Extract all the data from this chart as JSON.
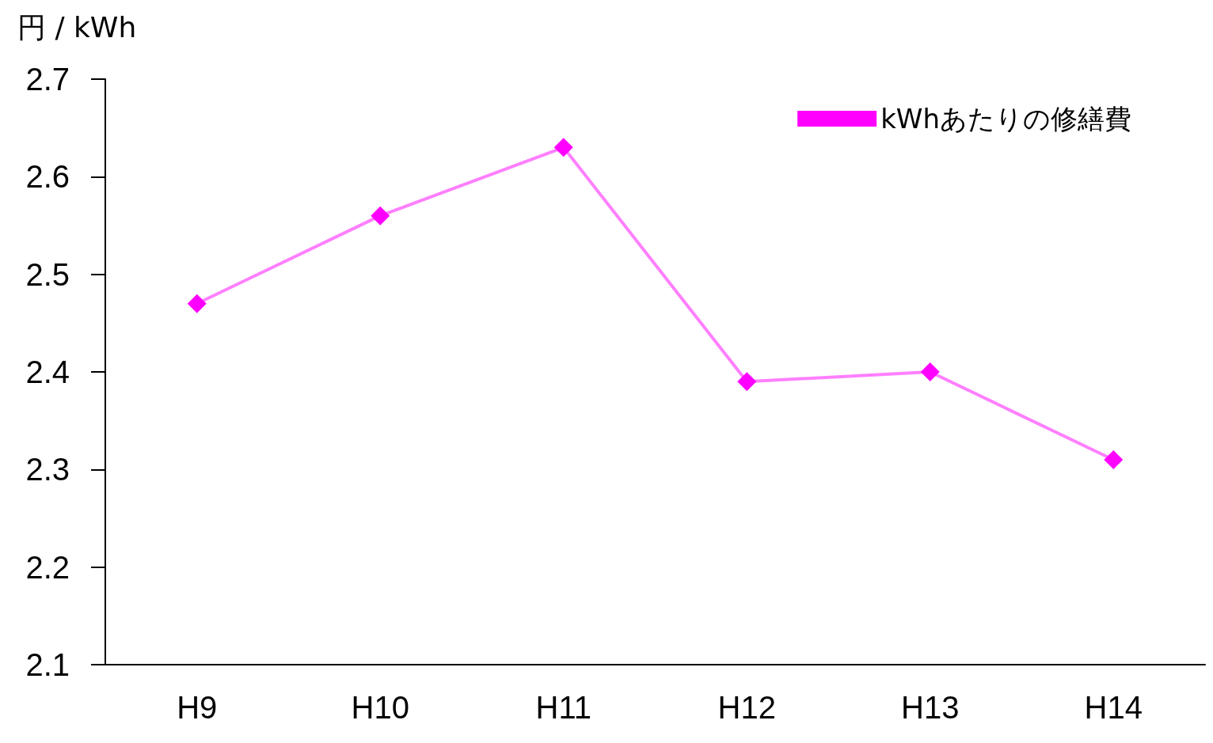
{
  "chart_data": {
    "type": "line",
    "ylabel": "円 / kWh",
    "categories": [
      "H9",
      "H10",
      "H11",
      "H12",
      "H13",
      "H14"
    ],
    "series": [
      {
        "name": "kWhあたりの修繕費",
        "color": "#ff00ff",
        "values": [
          2.47,
          2.56,
          2.63,
          2.39,
          2.4,
          2.31
        ]
      }
    ],
    "ylim": [
      2.1,
      2.7
    ],
    "yticks": [
      2.1,
      2.2,
      2.3,
      2.4,
      2.5,
      2.6,
      2.7
    ],
    "grid": false,
    "legend": "top right",
    "marker": "diamond",
    "line_style": "solid"
  }
}
